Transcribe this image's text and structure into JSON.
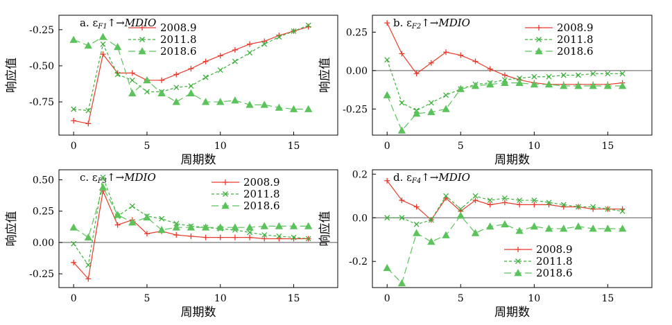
{
  "colors": {
    "2008.9": "#e83a2c",
    "2011.8": "#3cae3c",
    "2018.6": "#5cc25c",
    "axis": "#000000"
  },
  "chart_data": [
    {
      "type": "line",
      "panel": "a",
      "title_prefix": "a. ε",
      "title_sub": "F1",
      "title_suffix": "↑→",
      "title_var": "MDIO",
      "xlabel": "周期数",
      "ylabel": "响应值",
      "xlim": [
        -1,
        18
      ],
      "ylim": [
        -0.98,
        -0.15
      ],
      "xticks": [
        0,
        5,
        10,
        15
      ],
      "yticks": [
        -0.75,
        -0.5,
        -0.25
      ],
      "ytick_labels": [
        "-0.75",
        "-0.50",
        "-0.25"
      ],
      "zero_line": false,
      "legend_position": "top-center",
      "x": [
        0,
        1,
        2,
        3,
        4,
        5,
        6,
        7,
        8,
        9,
        10,
        11,
        12,
        13,
        14,
        15,
        16
      ],
      "series": [
        {
          "name": "2008.9",
          "marker": "plus",
          "dash": "solid",
          "values": [
            -0.88,
            -0.9,
            -0.42,
            -0.55,
            -0.55,
            -0.6,
            -0.6,
            -0.56,
            -0.52,
            -0.47,
            -0.43,
            -0.39,
            -0.35,
            -0.33,
            -0.29,
            -0.26,
            -0.23
          ]
        },
        {
          "name": "2011.8",
          "marker": "x",
          "dash": "short",
          "values": [
            -0.8,
            -0.81,
            -0.35,
            -0.56,
            -0.6,
            -0.68,
            -0.68,
            -0.65,
            -0.64,
            -0.58,
            -0.53,
            -0.47,
            -0.41,
            -0.35,
            -0.3,
            -0.26,
            -0.22
          ]
        },
        {
          "name": "2018.6",
          "marker": "triangle",
          "dash": "long",
          "values": [
            -0.32,
            -0.36,
            -0.3,
            -0.37,
            -0.69,
            -0.6,
            -0.69,
            -0.75,
            -0.69,
            -0.75,
            -0.75,
            -0.74,
            -0.77,
            -0.77,
            -0.79,
            -0.8,
            -0.8
          ]
        }
      ]
    },
    {
      "type": "line",
      "panel": "b",
      "title_prefix": "b. ε",
      "title_sub": "F2",
      "title_suffix": "↑→",
      "title_var": "MDIO",
      "xlabel": "周期数",
      "ylabel": "响应值",
      "xlim": [
        -1,
        18
      ],
      "ylim": [
        -0.42,
        0.36
      ],
      "xticks": [
        0,
        5,
        10,
        15
      ],
      "yticks": [
        -0.25,
        0,
        0.25
      ],
      "ytick_labels": [
        "-0.25",
        "0.00",
        "0.25"
      ],
      "zero_line": true,
      "legend_position": "top-right",
      "x": [
        0,
        1,
        2,
        3,
        4,
        5,
        6,
        7,
        8,
        9,
        10,
        11,
        12,
        13,
        14,
        15,
        16
      ],
      "series": [
        {
          "name": "2008.9",
          "marker": "plus",
          "dash": "solid",
          "values": [
            0.31,
            0.11,
            -0.02,
            0.05,
            0.12,
            0.1,
            0.06,
            0.01,
            -0.03,
            -0.06,
            -0.08,
            -0.09,
            -0.09,
            -0.09,
            -0.09,
            -0.09,
            -0.08
          ]
        },
        {
          "name": "2011.8",
          "marker": "x",
          "dash": "short",
          "values": [
            0.07,
            -0.21,
            -0.26,
            -0.21,
            -0.16,
            -0.12,
            -0.09,
            -0.08,
            -0.06,
            -0.05,
            -0.04,
            -0.04,
            -0.03,
            -0.03,
            -0.02,
            -0.02,
            -0.02
          ]
        },
        {
          "name": "2018.6",
          "marker": "triangle",
          "dash": "long",
          "values": [
            -0.16,
            -0.39,
            -0.28,
            -0.27,
            -0.25,
            -0.12,
            -0.1,
            -0.09,
            -0.08,
            -0.08,
            -0.09,
            -0.09,
            -0.1,
            -0.1,
            -0.1,
            -0.1,
            -0.1
          ]
        }
      ]
    },
    {
      "type": "line",
      "panel": "c",
      "title_prefix": "c. ε",
      "title_sub": "F3",
      "title_suffix": "↑→",
      "title_var": "MDIO",
      "xlabel": "周期数",
      "ylabel": "响应值",
      "xlim": [
        -1,
        18
      ],
      "ylim": [
        -0.36,
        0.58
      ],
      "xticks": [
        0,
        5,
        10,
        15
      ],
      "yticks": [
        -0.25,
        0,
        0.25,
        0.5
      ],
      "ytick_labels": [
        "-0.25",
        "0.00",
        "0.25",
        "0.50"
      ],
      "zero_line": true,
      "legend_position": "top-right",
      "x": [
        0,
        1,
        2,
        3,
        4,
        5,
        6,
        7,
        8,
        9,
        10,
        11,
        12,
        13,
        14,
        15,
        16
      ],
      "series": [
        {
          "name": "2008.9",
          "marker": "plus",
          "dash": "solid",
          "values": [
            -0.16,
            -0.29,
            0.41,
            0.14,
            0.18,
            0.07,
            0.09,
            0.06,
            0.05,
            0.04,
            0.04,
            0.04,
            0.04,
            0.03,
            0.03,
            0.03,
            0.03
          ]
        },
        {
          "name": "2011.8",
          "marker": "x",
          "dash": "short",
          "values": [
            -0.01,
            -0.18,
            0.52,
            0.21,
            0.29,
            0.21,
            0.19,
            0.15,
            0.13,
            0.12,
            0.11,
            0.1,
            0.08,
            0.06,
            0.05,
            0.04,
            0.03
          ]
        },
        {
          "name": "2018.6",
          "marker": "triangle",
          "dash": "long",
          "values": [
            0.12,
            0.04,
            0.44,
            0.22,
            0.16,
            0.2,
            0.1,
            0.12,
            0.12,
            0.12,
            0.12,
            0.12,
            0.12,
            0.13,
            0.13,
            0.13,
            0.13
          ]
        }
      ]
    },
    {
      "type": "line",
      "panel": "d",
      "title_prefix": "d. ε",
      "title_sub": "F4",
      "title_suffix": "↑→",
      "title_var": "MDIO",
      "xlabel": "周期数",
      "ylabel": "响应值",
      "xlim": [
        -1,
        18
      ],
      "ylim": [
        -0.32,
        0.22
      ],
      "xticks": [
        0,
        5,
        10,
        15
      ],
      "yticks": [
        -0.2,
        0,
        0.2
      ],
      "ytick_labels": [
        "-0.2",
        "0.0",
        "0.2"
      ],
      "zero_line": true,
      "legend_position": "bottom-right",
      "x": [
        0,
        1,
        2,
        3,
        4,
        5,
        6,
        7,
        8,
        9,
        10,
        11,
        12,
        13,
        14,
        15,
        16
      ],
      "series": [
        {
          "name": "2008.9",
          "marker": "plus",
          "dash": "solid",
          "values": [
            0.17,
            0.08,
            0.05,
            -0.01,
            0.09,
            0.03,
            0.08,
            0.06,
            0.07,
            0.06,
            0.06,
            0.06,
            0.05,
            0.05,
            0.04,
            0.04,
            0.04
          ]
        },
        {
          "name": "2011.8",
          "marker": "x",
          "dash": "short",
          "values": [
            0.0,
            0.0,
            -0.03,
            -0.01,
            0.1,
            0.04,
            0.1,
            0.08,
            0.09,
            0.08,
            0.08,
            0.07,
            0.06,
            0.05,
            0.05,
            0.04,
            0.03
          ]
        },
        {
          "name": "2018.6",
          "marker": "triangle",
          "dash": "long",
          "values": [
            -0.23,
            -0.3,
            -0.07,
            -0.11,
            -0.08,
            0.01,
            -0.07,
            -0.04,
            -0.03,
            -0.06,
            -0.04,
            -0.05,
            -0.05,
            -0.04,
            -0.05,
            -0.05,
            -0.05
          ]
        }
      ]
    }
  ]
}
